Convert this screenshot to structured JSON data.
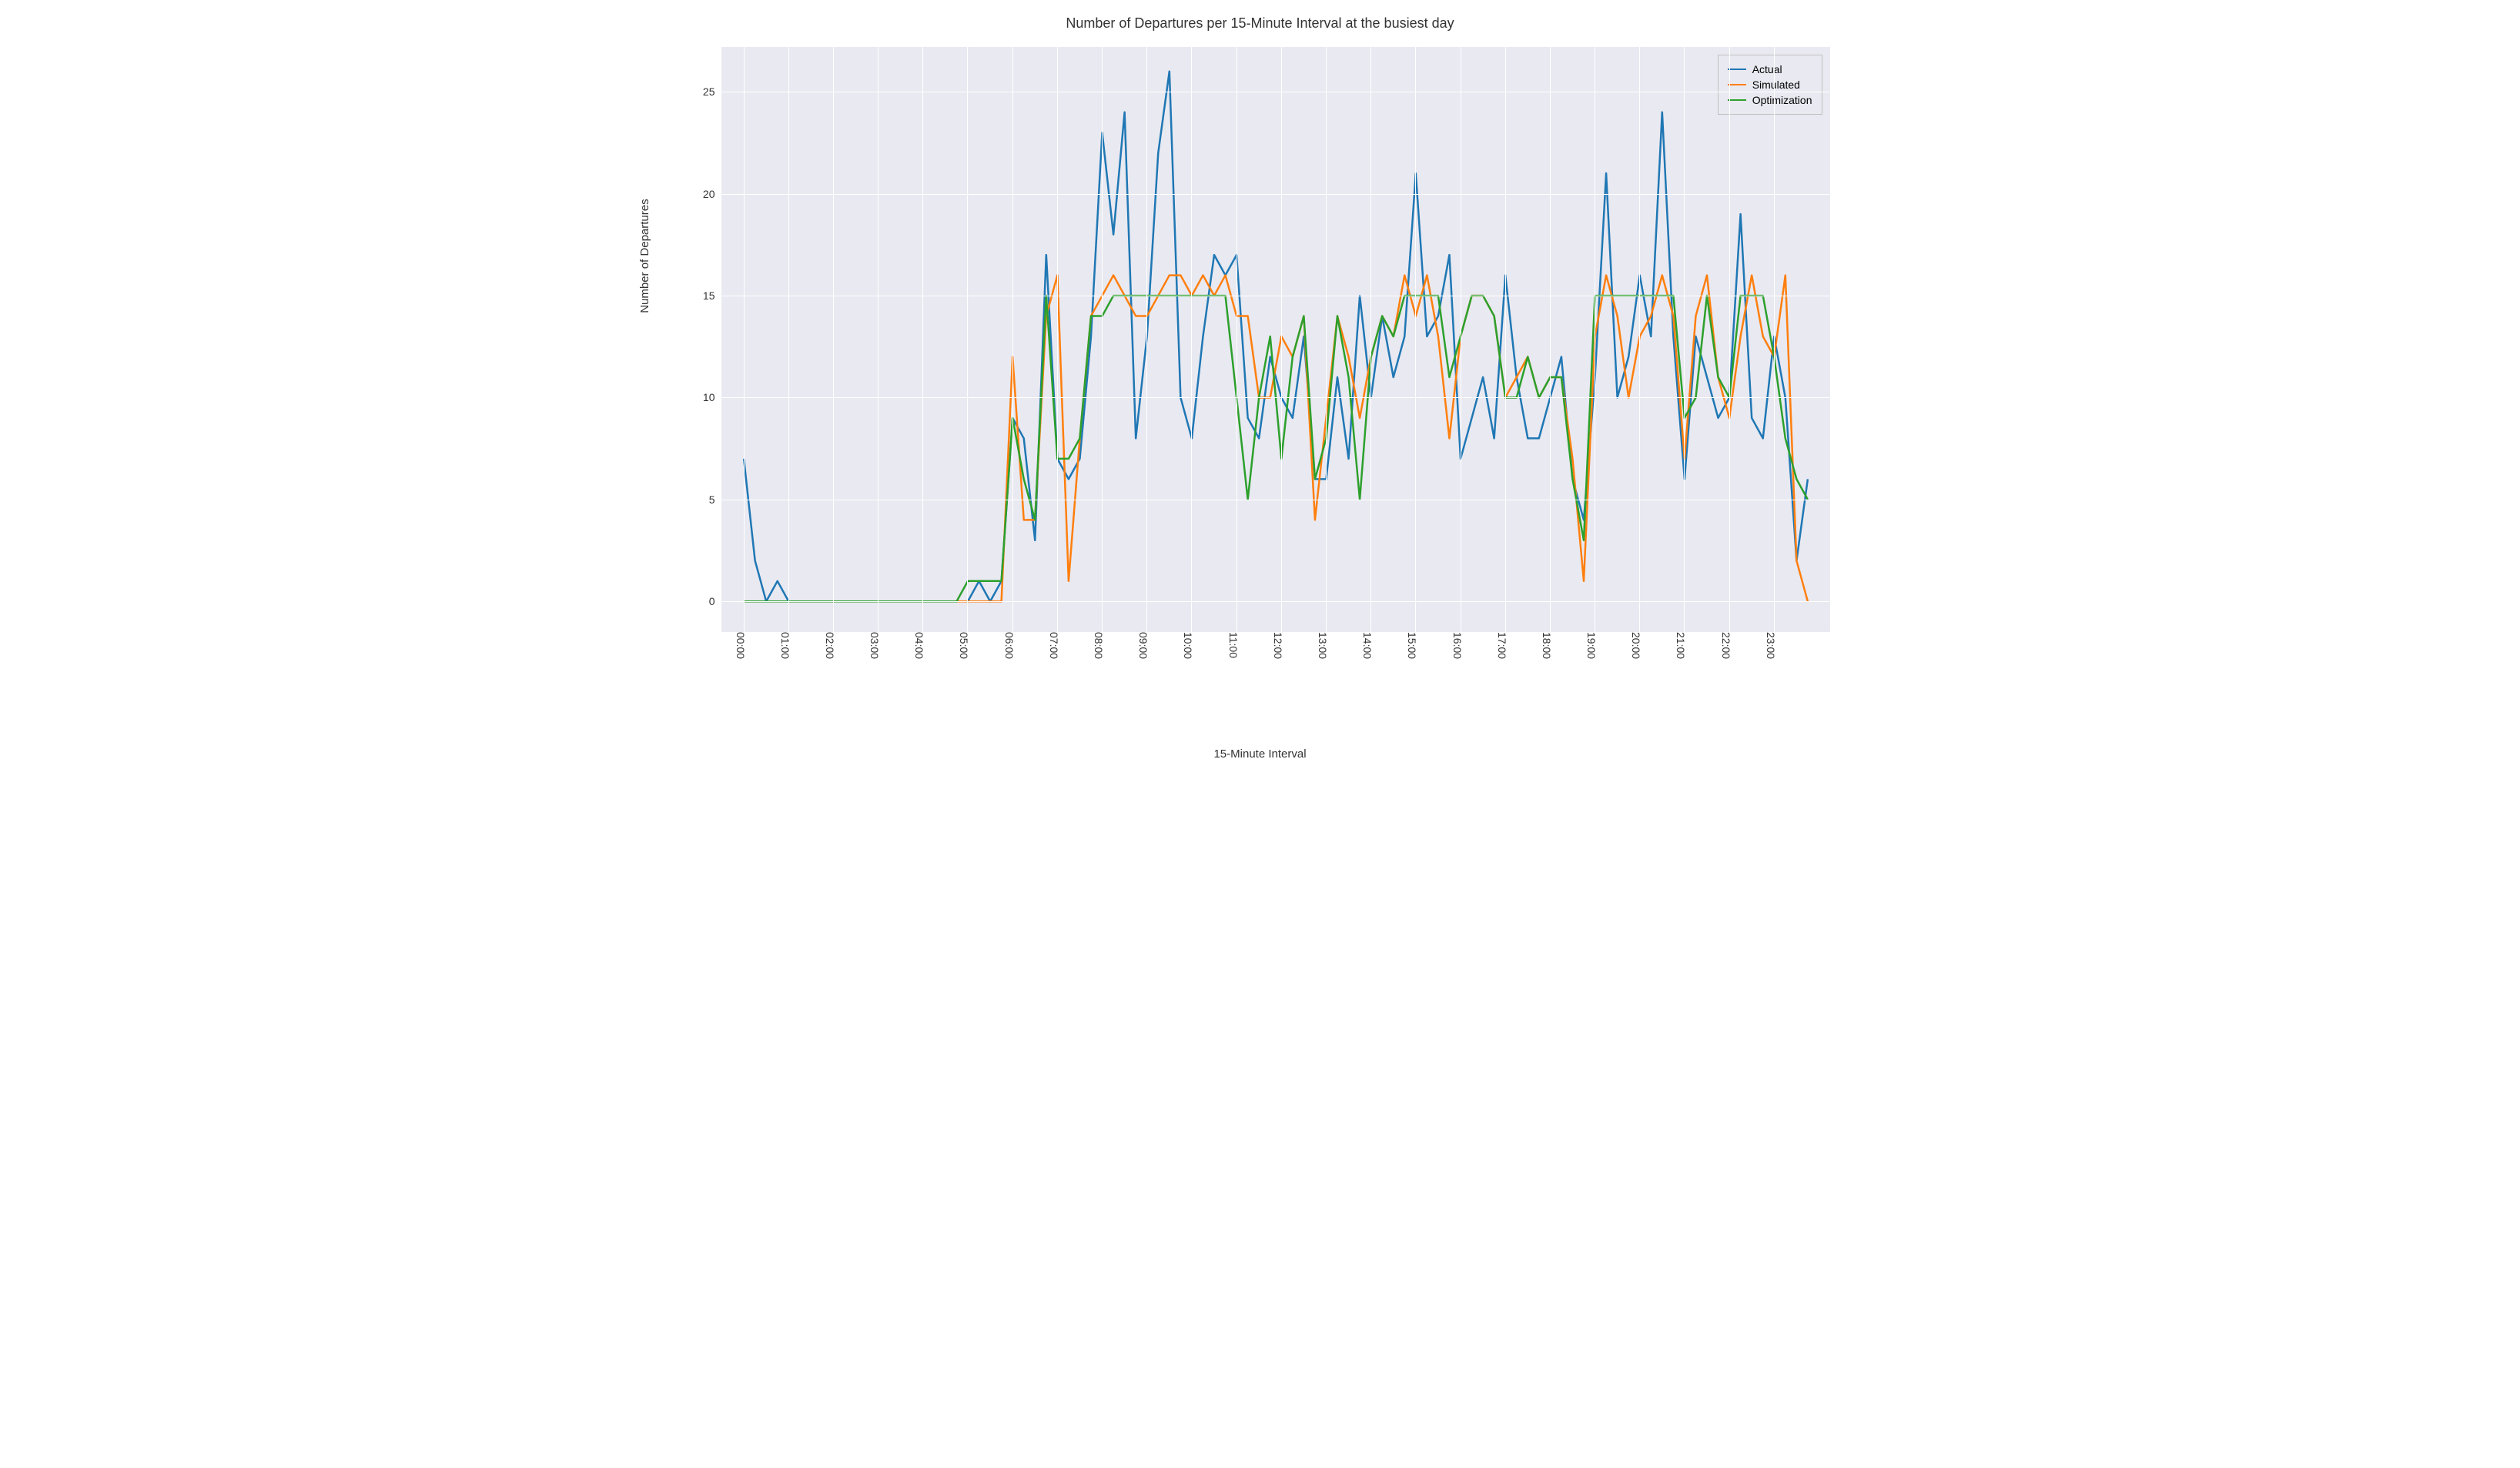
{
  "chart": {
    "type": "line",
    "title": "Number of Departures per 15-Minute Interval at the busiest day",
    "title_fontsize": 18,
    "xlabel": "15-Minute Interval",
    "ylabel": "Number of Departures",
    "label_fontsize": 15,
    "tick_fontsize": 14,
    "background_color": "#e9e9f1",
    "grid_color": "#ffffff",
    "line_width": 2.5,
    "ylim": [
      -1.5,
      27.2
    ],
    "yticks": [
      0,
      5,
      10,
      15,
      20,
      25
    ],
    "x_count": 96,
    "x_min": -2,
    "x_max": 97,
    "xtick_indices": [
      0,
      4,
      8,
      12,
      16,
      20,
      24,
      28,
      32,
      36,
      40,
      44,
      48,
      52,
      56,
      60,
      64,
      68,
      72,
      76,
      80,
      84,
      88,
      92
    ],
    "xtick_labels": [
      "00:00",
      "01:00",
      "02:00",
      "03:00",
      "04:00",
      "05:00",
      "06:00",
      "07:00",
      "08:00",
      "09:00",
      "10:00",
      "11:00",
      "12:00",
      "13:00",
      "14:00",
      "15:00",
      "16:00",
      "17:00",
      "18:00",
      "19:00",
      "20:00",
      "21:00",
      "22:00",
      "23:00"
    ],
    "legend": {
      "position": "upper-right",
      "border_color": "#bfbfbf",
      "items": [
        {
          "label": "Actual",
          "color": "#1f77b4"
        },
        {
          "label": "Simulated",
          "color": "#ff7f0e"
        },
        {
          "label": "Optimization",
          "color": "#2ca02c"
        }
      ]
    },
    "series": [
      {
        "name": "Actual",
        "color": "#1f77b4",
        "values": [
          7,
          2,
          0,
          1,
          0,
          0,
          0,
          0,
          0,
          0,
          0,
          0,
          0,
          0,
          0,
          0,
          0,
          0,
          0,
          0,
          0,
          1,
          0,
          1,
          9,
          8,
          3,
          17,
          7,
          6,
          7,
          13,
          23,
          18,
          24,
          8,
          13,
          22,
          26,
          10,
          8,
          13,
          17,
          16,
          17,
          9,
          8,
          12,
          10,
          9,
          13,
          6,
          6,
          11,
          7,
          15,
          10,
          14,
          11,
          13,
          21,
          13,
          14,
          17,
          7,
          9,
          11,
          8,
          16,
          11,
          8,
          8,
          10,
          12,
          6,
          4,
          11,
          21,
          10,
          12,
          16,
          13,
          24,
          13,
          6,
          13,
          11,
          9,
          10,
          19,
          9,
          8,
          13,
          10,
          2,
          6
        ]
      },
      {
        "name": "Simulated",
        "color": "#ff7f0e",
        "values": [
          0,
          0,
          0,
          0,
          0,
          0,
          0,
          0,
          0,
          0,
          0,
          0,
          0,
          0,
          0,
          0,
          0,
          0,
          0,
          0,
          0,
          0,
          0,
          0,
          12,
          4,
          4,
          14,
          16,
          1,
          8,
          14,
          15,
          16,
          15,
          14,
          14,
          15,
          16,
          16,
          15,
          16,
          15,
          16,
          14,
          14,
          10,
          10,
          13,
          12,
          14,
          4,
          9,
          14,
          12,
          9,
          12,
          14,
          13,
          16,
          14,
          16,
          13,
          8,
          13,
          15,
          15,
          14,
          10,
          11,
          12,
          10,
          11,
          11,
          7,
          1,
          13,
          16,
          14,
          10,
          13,
          14,
          16,
          14,
          7,
          14,
          16,
          11,
          9,
          13,
          16,
          13,
          12,
          16,
          2,
          0
        ]
      },
      {
        "name": "Optimization",
        "color": "#2ca02c",
        "values": [
          0,
          0,
          0,
          0,
          0,
          0,
          0,
          0,
          0,
          0,
          0,
          0,
          0,
          0,
          0,
          0,
          0,
          0,
          0,
          0,
          1,
          1,
          1,
          1,
          9,
          6,
          4,
          15,
          7,
          7,
          8,
          14,
          14,
          15,
          15,
          15,
          15,
          15,
          15,
          15,
          15,
          15,
          15,
          15,
          10,
          5,
          10,
          13,
          7,
          12,
          14,
          6,
          8,
          14,
          11,
          5,
          12,
          14,
          13,
          15,
          15,
          15,
          15,
          11,
          13,
          15,
          15,
          14,
          10,
          10,
          12,
          10,
          11,
          11,
          6,
          3,
          15,
          15,
          15,
          15,
          15,
          15,
          15,
          15,
          9,
          10,
          15,
          11,
          10,
          15,
          15,
          15,
          12,
          8,
          6,
          5
        ]
      }
    ]
  }
}
